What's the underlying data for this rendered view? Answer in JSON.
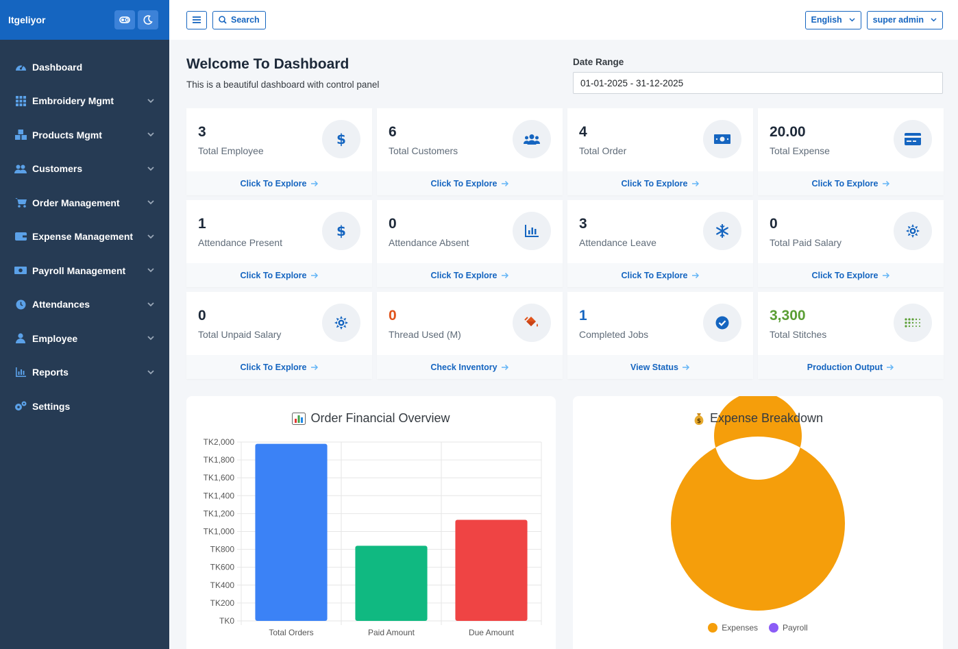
{
  "brand": {
    "name": "Itgeliyor"
  },
  "icons": {
    "toggle": "toggle-icon",
    "theme": "moon-icon"
  },
  "sidebar": {
    "items": [
      {
        "label": "Dashboard",
        "icon": "speedometer-icon",
        "chevron": false
      },
      {
        "label": "Embroidery Mgmt",
        "icon": "grid-icon",
        "chevron": true
      },
      {
        "label": "Products Mgmt",
        "icon": "boxes-icon",
        "chevron": true
      },
      {
        "label": "Customers",
        "icon": "users-icon",
        "chevron": true
      },
      {
        "label": "Order Management",
        "icon": "cart-icon",
        "chevron": true
      },
      {
        "label": "Expense Management",
        "icon": "wallet-icon",
        "chevron": true
      },
      {
        "label": "Payroll Management",
        "icon": "money-icon",
        "chevron": true
      },
      {
        "label": "Attendances",
        "icon": "clock-icon",
        "chevron": true
      },
      {
        "label": "Employee",
        "icon": "user-icon",
        "chevron": true
      },
      {
        "label": "Reports",
        "icon": "bar-chart-icon",
        "chevron": true
      },
      {
        "label": "Settings",
        "icon": "gears-icon",
        "chevron": false
      }
    ]
  },
  "header": {
    "search_label": "Search",
    "language": "English",
    "user": "super admin"
  },
  "page": {
    "title": "Welcome To Dashboard",
    "subtitle": "This is a beautiful dashboard with control panel",
    "date_range_label": "Date Range",
    "date_range_value": "01-01-2025 - 31-12-2025"
  },
  "cards": [
    {
      "value": "3",
      "label": "Total Employee",
      "link": "Click To Explore",
      "icon": "dollar-icon",
      "value_color": "#1d2939"
    },
    {
      "value": "6",
      "label": "Total Customers",
      "link": "Click To Explore",
      "icon": "users-icon",
      "value_color": "#1d2939"
    },
    {
      "value": "4",
      "label": "Total Order",
      "link": "Click To Explore",
      "icon": "money-bill-icon",
      "value_color": "#1d2939"
    },
    {
      "value": "20.00",
      "label": "Total Expense",
      "link": "Click To Explore",
      "icon": "credit-card-icon",
      "value_color": "#1d2939"
    },
    {
      "value": "1",
      "label": "Attendance Present",
      "link": "Click To Explore",
      "icon": "dollar-icon",
      "value_color": "#1d2939"
    },
    {
      "value": "0",
      "label": "Attendance Absent",
      "link": "Click To Explore",
      "icon": "bar-chart-icon",
      "value_color": "#1d2939"
    },
    {
      "value": "3",
      "label": "Attendance Leave",
      "link": "Click To Explore",
      "icon": "snowflake-icon",
      "value_color": "#1d2939"
    },
    {
      "value": "0",
      "label": "Total Paid Salary",
      "link": "Click To Explore",
      "icon": "sun-icon",
      "value_color": "#1d2939"
    },
    {
      "value": "0",
      "label": "Total Unpaid Salary",
      "link": "Click To Explore",
      "icon": "sun-icon",
      "value_color": "#1d2939"
    },
    {
      "value": "0",
      "label": "Thread Used (M)",
      "link": "Check Inventory",
      "icon": "paint-bucket-icon",
      "value_color": "#e0531b"
    },
    {
      "value": "1",
      "label": "Completed Jobs",
      "link": "View Status",
      "icon": "check-circle-icon",
      "value_color": "#1565c0"
    },
    {
      "value": "3,300",
      "label": "Total Stitches",
      "link": "Production Output",
      "icon": "dots-icon",
      "value_color": "#5a9e34"
    }
  ],
  "colors": {
    "accent": "#1565c0",
    "sidebar": "#263b54",
    "bar_total": "#3b82f6",
    "bar_paid": "#10b981",
    "bar_due": "#ef4444",
    "expenses": "#f59e0b",
    "payroll": "#8b5cf6"
  },
  "chart_data": [
    {
      "type": "bar",
      "title": "Order Financial Overview",
      "title_icon": "bar-chart-emoji-icon",
      "categories": [
        "Total Orders",
        "Paid Amount",
        "Due Amount"
      ],
      "values": [
        1980,
        840,
        1130
      ],
      "ylim": [
        0,
        2000
      ],
      "yticks": [
        "TK0",
        "TK200",
        "TK400",
        "TK600",
        "TK800",
        "TK1,000",
        "TK1,200",
        "TK1,400",
        "TK1,600",
        "TK1,800",
        "TK2,000"
      ],
      "grid": true
    },
    {
      "type": "pie",
      "title": "Expense Breakdown",
      "title_icon": "money-bag-emoji-icon",
      "labels": [
        "Expenses",
        "Payroll"
      ],
      "values": [
        20,
        0
      ],
      "donut": true,
      "legend": "bottom"
    }
  ]
}
